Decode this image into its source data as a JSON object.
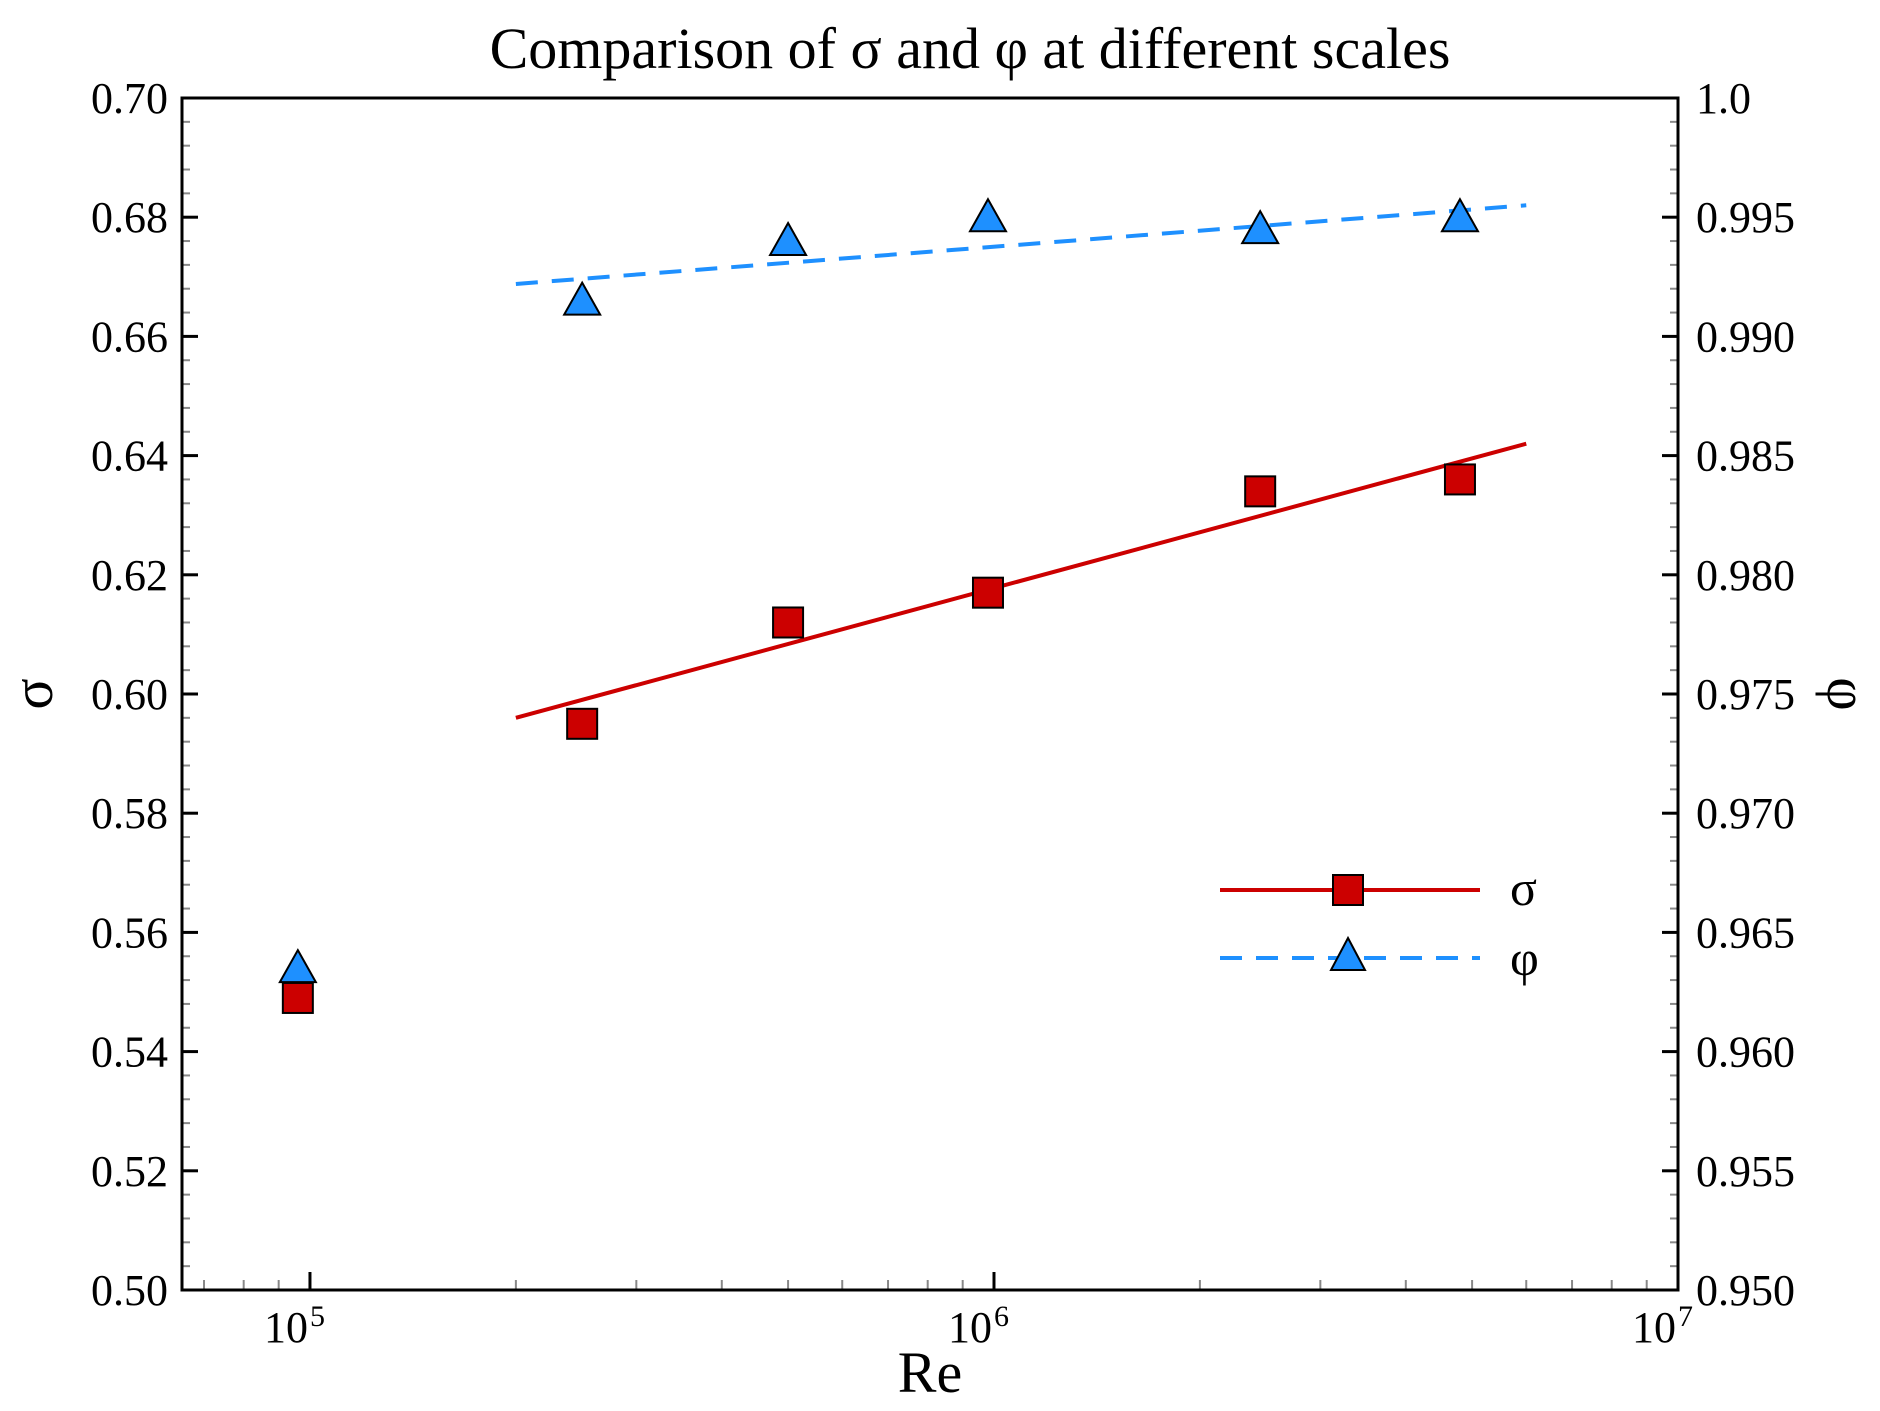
{
  "chart_data": {
    "type": "scatter",
    "title": "Comparison of σ and φ at different scales",
    "xlabel": "Re",
    "ylabel_left": "σ",
    "ylabel_right": "φ",
    "xscale": "log",
    "xlim": [
      65000,
      10000000
    ],
    "ylim_left": [
      0.5,
      0.7
    ],
    "ylim_right": [
      0.95,
      1.0
    ],
    "x_ticks": [
      {
        "base": "10",
        "exp": "5",
        "value": 100000
      },
      {
        "base": "10",
        "exp": "6",
        "value": 1000000
      },
      {
        "base": "10",
        "exp": "7",
        "value": 10000000
      }
    ],
    "y_ticks_left": [
      "0.50",
      "0.52",
      "0.54",
      "0.56",
      "0.58",
      "0.60",
      "0.62",
      "0.64",
      "0.66",
      "0.68",
      "0.70"
    ],
    "y_ticks_right": [
      "0.950",
      "0.955",
      "0.960",
      "0.965",
      "0.970",
      "0.975",
      "0.980",
      "0.985",
      "0.990",
      "0.995",
      "1.0"
    ],
    "series": [
      {
        "name": "σ",
        "axis": "left",
        "marker": "square",
        "color": "#cc0000",
        "x": [
          96000,
          250000,
          500000,
          980000,
          2450000,
          4800000
        ],
        "values": [
          0.549,
          0.595,
          0.612,
          0.617,
          0.634,
          0.636
        ],
        "fit": {
          "style": "solid",
          "x": [
            200000,
            6000000
          ],
          "values": [
            0.596,
            0.642
          ]
        }
      },
      {
        "name": "φ",
        "axis": "right",
        "marker": "triangle",
        "color": "#1e90ff",
        "x": [
          96000,
          250000,
          500000,
          980000,
          2450000,
          4800000
        ],
        "values": [
          0.9635,
          0.9915,
          0.994,
          0.995,
          0.9945,
          0.995
        ],
        "fit": {
          "style": "dashed",
          "x": [
            200000,
            6000000
          ],
          "values": [
            0.9922,
            0.9955
          ]
        }
      }
    ],
    "legend": {
      "position": "right-middle",
      "entries": [
        "σ",
        "φ"
      ]
    }
  }
}
